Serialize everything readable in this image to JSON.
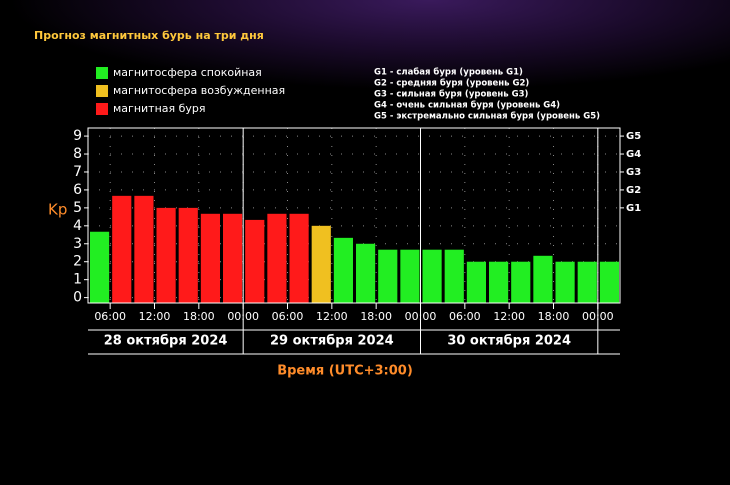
{
  "chart_data": {
    "type": "bar",
    "title": "Прогноз магнитных бурь на три дня",
    "y_label": "Kp",
    "x_label": "Время (UTC+3:00)",
    "legend": [
      {
        "name": "магнитосфера спокойная",
        "color": "#22ee22"
      },
      {
        "name": "магнитосфера возбужденная",
        "color": "#f0c020"
      },
      {
        "name": "магнитная буря",
        "color": "#ff1a1a"
      }
    ],
    "storm_levels": [
      "G1 - слабая буря (уровень G1)",
      "G2 - средняя буря (уровень G2)",
      "G3 - сильная буря (уровень G3)",
      "G4 - очень сильная буря (уровень G4)",
      "G5 - экстремально сильная буря (уровень G5)"
    ],
    "series": [
      {
        "values": [
          3.67,
          5.67,
          5.67,
          5.0,
          5.0,
          4.67,
          4.67,
          4.33,
          4.67,
          4.67,
          4.0,
          3.33,
          3.0,
          2.67,
          2.67,
          2.67,
          2.67,
          2.0,
          2.0,
          2.0,
          2.33,
          2.0,
          2.0,
          2.0
        ],
        "colors": [
          "#22ee22",
          "#ff1a1a",
          "#ff1a1a",
          "#ff1a1a",
          "#ff1a1a",
          "#ff1a1a",
          "#ff1a1a",
          "#ff1a1a",
          "#ff1a1a",
          "#ff1a1a",
          "#f0c020",
          "#22ee22",
          "#22ee22",
          "#22ee22",
          "#22ee22",
          "#22ee22",
          "#22ee22",
          "#22ee22",
          "#22ee22",
          "#22ee22",
          "#22ee22",
          "#22ee22",
          "#22ee22",
          "#22ee22"
        ]
      }
    ],
    "xlim": [
      3,
      75
    ],
    "xticks": [
      {
        "value": 6,
        "label": "06:00"
      },
      {
        "value": 12,
        "label": "12:00"
      },
      {
        "value": 18,
        "label": "18:00"
      },
      {
        "value": 24,
        "label": "00:00"
      },
      {
        "value": 30,
        "label": "06:00"
      },
      {
        "value": 36,
        "label": "12:00"
      },
      {
        "value": 42,
        "label": "18:00"
      },
      {
        "value": 48,
        "label": "00:00"
      },
      {
        "value": 54,
        "label": "06:00"
      },
      {
        "value": 60,
        "label": "12:00"
      },
      {
        "value": 66,
        "label": "18:00"
      },
      {
        "value": 72,
        "label": "00:00"
      }
    ],
    "days": [
      {
        "label": "28 октября 2024",
        "start": 3,
        "end": 24
      },
      {
        "label": "29 октября 2024",
        "start": 24,
        "end": 48
      },
      {
        "label": "30 октября 2024",
        "start": 48,
        "end": 72
      }
    ],
    "ylim": [
      -0.3,
      9.45
    ],
    "yticks": [
      0,
      1,
      2,
      3,
      4,
      5,
      6,
      7,
      8,
      9
    ],
    "y2ticks": [
      {
        "value": 5,
        "label": "G1"
      },
      {
        "value": 6,
        "label": "G2"
      },
      {
        "value": 7,
        "label": "G3"
      },
      {
        "value": 8,
        "label": "G4"
      },
      {
        "value": 9,
        "label": "G5"
      }
    ],
    "grid": true
  }
}
